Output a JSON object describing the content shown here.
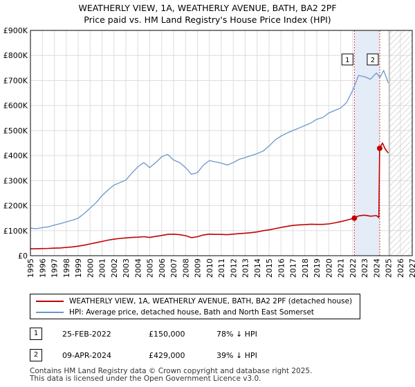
{
  "title_line1": "WEATHERLY VIEW, 1A, WEATHERLY AVENUE, BATH, BA2 2PF",
  "title_line2": "Price paid vs. HM Land Registry's House Price Index (HPI)",
  "colors": {
    "hpi": "#6a96cc",
    "price": "#c00000",
    "grid": "#dddddd",
    "band": "#e4ecf8",
    "vline": "#dd3333"
  },
  "chart_data": {
    "type": "line",
    "y_ticks": [
      "£0",
      "£100K",
      "£200K",
      "£300K",
      "£400K",
      "£500K",
      "£600K",
      "£700K",
      "£800K",
      "£900K"
    ],
    "x_ticks": [
      "1995",
      "1996",
      "1997",
      "1998",
      "1999",
      "2000",
      "2001",
      "2002",
      "2003",
      "2004",
      "2005",
      "2006",
      "2007",
      "2008",
      "2009",
      "2010",
      "2011",
      "2012",
      "2013",
      "2014",
      "2015",
      "2016",
      "2017",
      "2018",
      "2019",
      "2020",
      "2021",
      "2022",
      "2023",
      "2024",
      "2025",
      "2026",
      "2027"
    ],
    "xlim": [
      1995,
      2027
    ],
    "ylim": [
      0,
      900000
    ],
    "sale_band": [
      2022.15,
      2024.27
    ],
    "forecast_start": 2025.1,
    "series": [
      {
        "name": "HPI: Average price, detached house, Bath and North East Somerset",
        "key": "hpi",
        "x": [
          1995.0,
          1995.5,
          1996.0,
          1996.5,
          1997.0,
          1997.5,
          1998.0,
          1998.5,
          1999.0,
          1999.5,
          2000.0,
          2000.5,
          2001.0,
          2001.5,
          2002.0,
          2002.5,
          2003.0,
          2003.5,
          2004.0,
          2004.5,
          2005.0,
          2005.5,
          2006.0,
          2006.5,
          2007.0,
          2007.5,
          2008.0,
          2008.5,
          2009.0,
          2009.5,
          2010.0,
          2010.5,
          2011.0,
          2011.5,
          2012.0,
          2012.5,
          2013.0,
          2013.5,
          2014.0,
          2014.5,
          2015.0,
          2015.5,
          2016.0,
          2016.5,
          2017.0,
          2017.5,
          2018.0,
          2018.5,
          2019.0,
          2019.5,
          2020.0,
          2020.5,
          2021.0,
          2021.5,
          2022.0,
          2022.5,
          2023.0,
          2023.5,
          2024.0,
          2024.3,
          2024.6,
          2025.0
        ],
        "values": [
          110000,
          108000,
          112000,
          115000,
          122000,
          128000,
          135000,
          142000,
          150000,
          168000,
          190000,
          212000,
          240000,
          262000,
          282000,
          292000,
          302000,
          330000,
          355000,
          372000,
          352000,
          372000,
          395000,
          405000,
          382000,
          372000,
          352000,
          325000,
          332000,
          362000,
          380000,
          375000,
          370000,
          362000,
          372000,
          385000,
          392000,
          400000,
          408000,
          418000,
          438000,
          462000,
          478000,
          490000,
          500000,
          510000,
          520000,
          530000,
          545000,
          552000,
          570000,
          580000,
          590000,
          612000,
          660000,
          720000,
          715000,
          705000,
          730000,
          712000,
          740000,
          690000
        ]
      },
      {
        "name": "WEATHERLY VIEW, 1A, WEATHERLY AVENUE, BATH, BA2 2PF (detached house)",
        "key": "price",
        "x": [
          1995.0,
          1995.5,
          1996.0,
          1996.5,
          1997.0,
          1997.5,
          1998.0,
          1998.5,
          1999.0,
          1999.5,
          2000.0,
          2000.5,
          2001.0,
          2001.5,
          2002.0,
          2002.5,
          2003.0,
          2003.5,
          2004.0,
          2004.5,
          2005.0,
          2005.5,
          2006.0,
          2006.5,
          2007.0,
          2007.5,
          2008.0,
          2008.5,
          2009.0,
          2009.5,
          2010.0,
          2010.5,
          2011.0,
          2011.5,
          2012.0,
          2012.5,
          2013.0,
          2013.5,
          2014.0,
          2014.5,
          2015.0,
          2015.5,
          2016.0,
          2016.5,
          2017.0,
          2017.5,
          2018.0,
          2018.5,
          2019.0,
          2019.5,
          2020.0,
          2020.5,
          2021.0,
          2021.5,
          2022.0,
          2022.15,
          2022.5,
          2023.0,
          2023.5,
          2024.0,
          2024.2,
          2024.27,
          2024.5,
          2024.75,
          2025.0
        ],
        "values": [
          28000,
          28000,
          28500,
          29000,
          30000,
          31000,
          33000,
          35000,
          38000,
          42000,
          47000,
          52000,
          57000,
          62000,
          66000,
          69000,
          71000,
          73000,
          74000,
          76000,
          73000,
          77000,
          81000,
          85000,
          86000,
          84000,
          80000,
          72000,
          76000,
          83000,
          86000,
          85000,
          85000,
          84000,
          86000,
          88000,
          90000,
          92000,
          95000,
          100000,
          103000,
          108000,
          113000,
          117000,
          121000,
          123000,
          124000,
          126000,
          125000,
          125000,
          127000,
          131000,
          136000,
          142000,
          148000,
          150000,
          159000,
          162000,
          158000,
          160000,
          152000,
          429000,
          450000,
          425000,
          410000
        ]
      }
    ],
    "sales": [
      {
        "label": "1",
        "x": 2022.15,
        "value": 150000,
        "date": "25-FEB-2022",
        "price": "£150,000",
        "hpi_diff": "78% ↓ HPI"
      },
      {
        "label": "2",
        "x": 2024.27,
        "value": 429000,
        "date": "09-APR-2024",
        "price": "£429,000",
        "hpi_diff": "39% ↓ HPI"
      }
    ]
  },
  "legend": {
    "price_label": "WEATHERLY VIEW, 1A, WEATHERLY AVENUE, BATH, BA2 2PF (detached house)",
    "hpi_label": "HPI: Average price, detached house, Bath and North East Somerset"
  },
  "footer": {
    "line1": "Contains HM Land Registry data © Crown copyright and database right 2025.",
    "line2": "This data is licensed under the Open Government Licence v3.0."
  }
}
